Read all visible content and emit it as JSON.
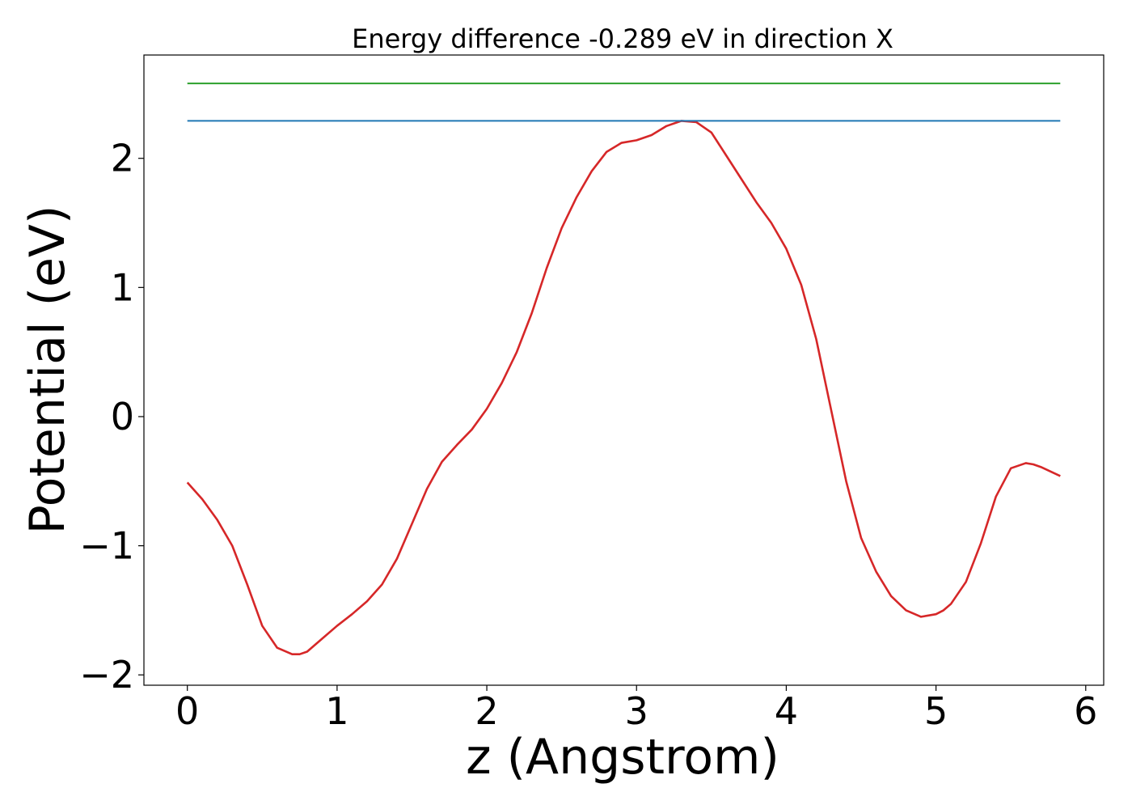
{
  "chart_data": {
    "type": "line",
    "title": "Energy difference -0.289 eV in direction X",
    "xlabel": "z (Angstrom)",
    "ylabel": "Potential (eV)",
    "xlim": [
      -0.29,
      6.12
    ],
    "ylim": [
      -2.08,
      2.8
    ],
    "xticks": [
      0,
      1,
      2,
      3,
      4,
      5,
      6
    ],
    "xtick_labels": [
      "0",
      "1",
      "2",
      "3",
      "4",
      "5",
      "6"
    ],
    "yticks": [
      -2,
      -1,
      0,
      1,
      2
    ],
    "ytick_labels": [
      "−2",
      "−1",
      "0",
      "1",
      "2"
    ],
    "grid": false,
    "series": [
      {
        "color": "#d62728",
        "x": [
          0.0,
          0.1,
          0.2,
          0.3,
          0.4,
          0.5,
          0.6,
          0.7,
          0.75,
          0.8,
          0.9,
          1.0,
          1.1,
          1.2,
          1.3,
          1.4,
          1.5,
          1.6,
          1.7,
          1.8,
          1.9,
          2.0,
          2.1,
          2.2,
          2.3,
          2.4,
          2.5,
          2.6,
          2.7,
          2.8,
          2.9,
          3.0,
          3.1,
          3.2,
          3.3,
          3.4,
          3.5,
          3.6,
          3.7,
          3.8,
          3.9,
          4.0,
          4.1,
          4.2,
          4.3,
          4.4,
          4.5,
          4.6,
          4.7,
          4.8,
          4.9,
          5.0,
          5.05,
          5.1,
          5.2,
          5.3,
          5.4,
          5.5,
          5.6,
          5.65,
          5.7,
          5.83
        ],
        "y": [
          -0.51,
          -0.64,
          -0.8,
          -1.0,
          -1.3,
          -1.62,
          -1.79,
          -1.84,
          -1.84,
          -1.82,
          -1.72,
          -1.62,
          -1.53,
          -1.43,
          -1.3,
          -1.1,
          -0.83,
          -0.56,
          -0.35,
          -0.22,
          -0.1,
          0.06,
          0.26,
          0.5,
          0.8,
          1.15,
          1.46,
          1.7,
          1.9,
          2.05,
          2.12,
          2.14,
          2.18,
          2.25,
          2.29,
          2.28,
          2.2,
          2.02,
          1.84,
          1.66,
          1.5,
          1.3,
          1.02,
          0.6,
          0.05,
          -0.5,
          -0.94,
          -1.2,
          -1.39,
          -1.5,
          -1.55,
          -1.53,
          -1.5,
          -1.45,
          -1.28,
          -0.98,
          -0.62,
          -0.4,
          -0.36,
          -0.37,
          -0.39,
          -0.46
        ]
      },
      {
        "color": "#1f77b4",
        "x": [
          0.0,
          5.83
        ],
        "y": [
          2.29,
          2.29
        ]
      },
      {
        "color": "#2ca02c",
        "x": [
          0.0,
          5.83
        ],
        "y": [
          2.58,
          2.58
        ]
      }
    ]
  }
}
